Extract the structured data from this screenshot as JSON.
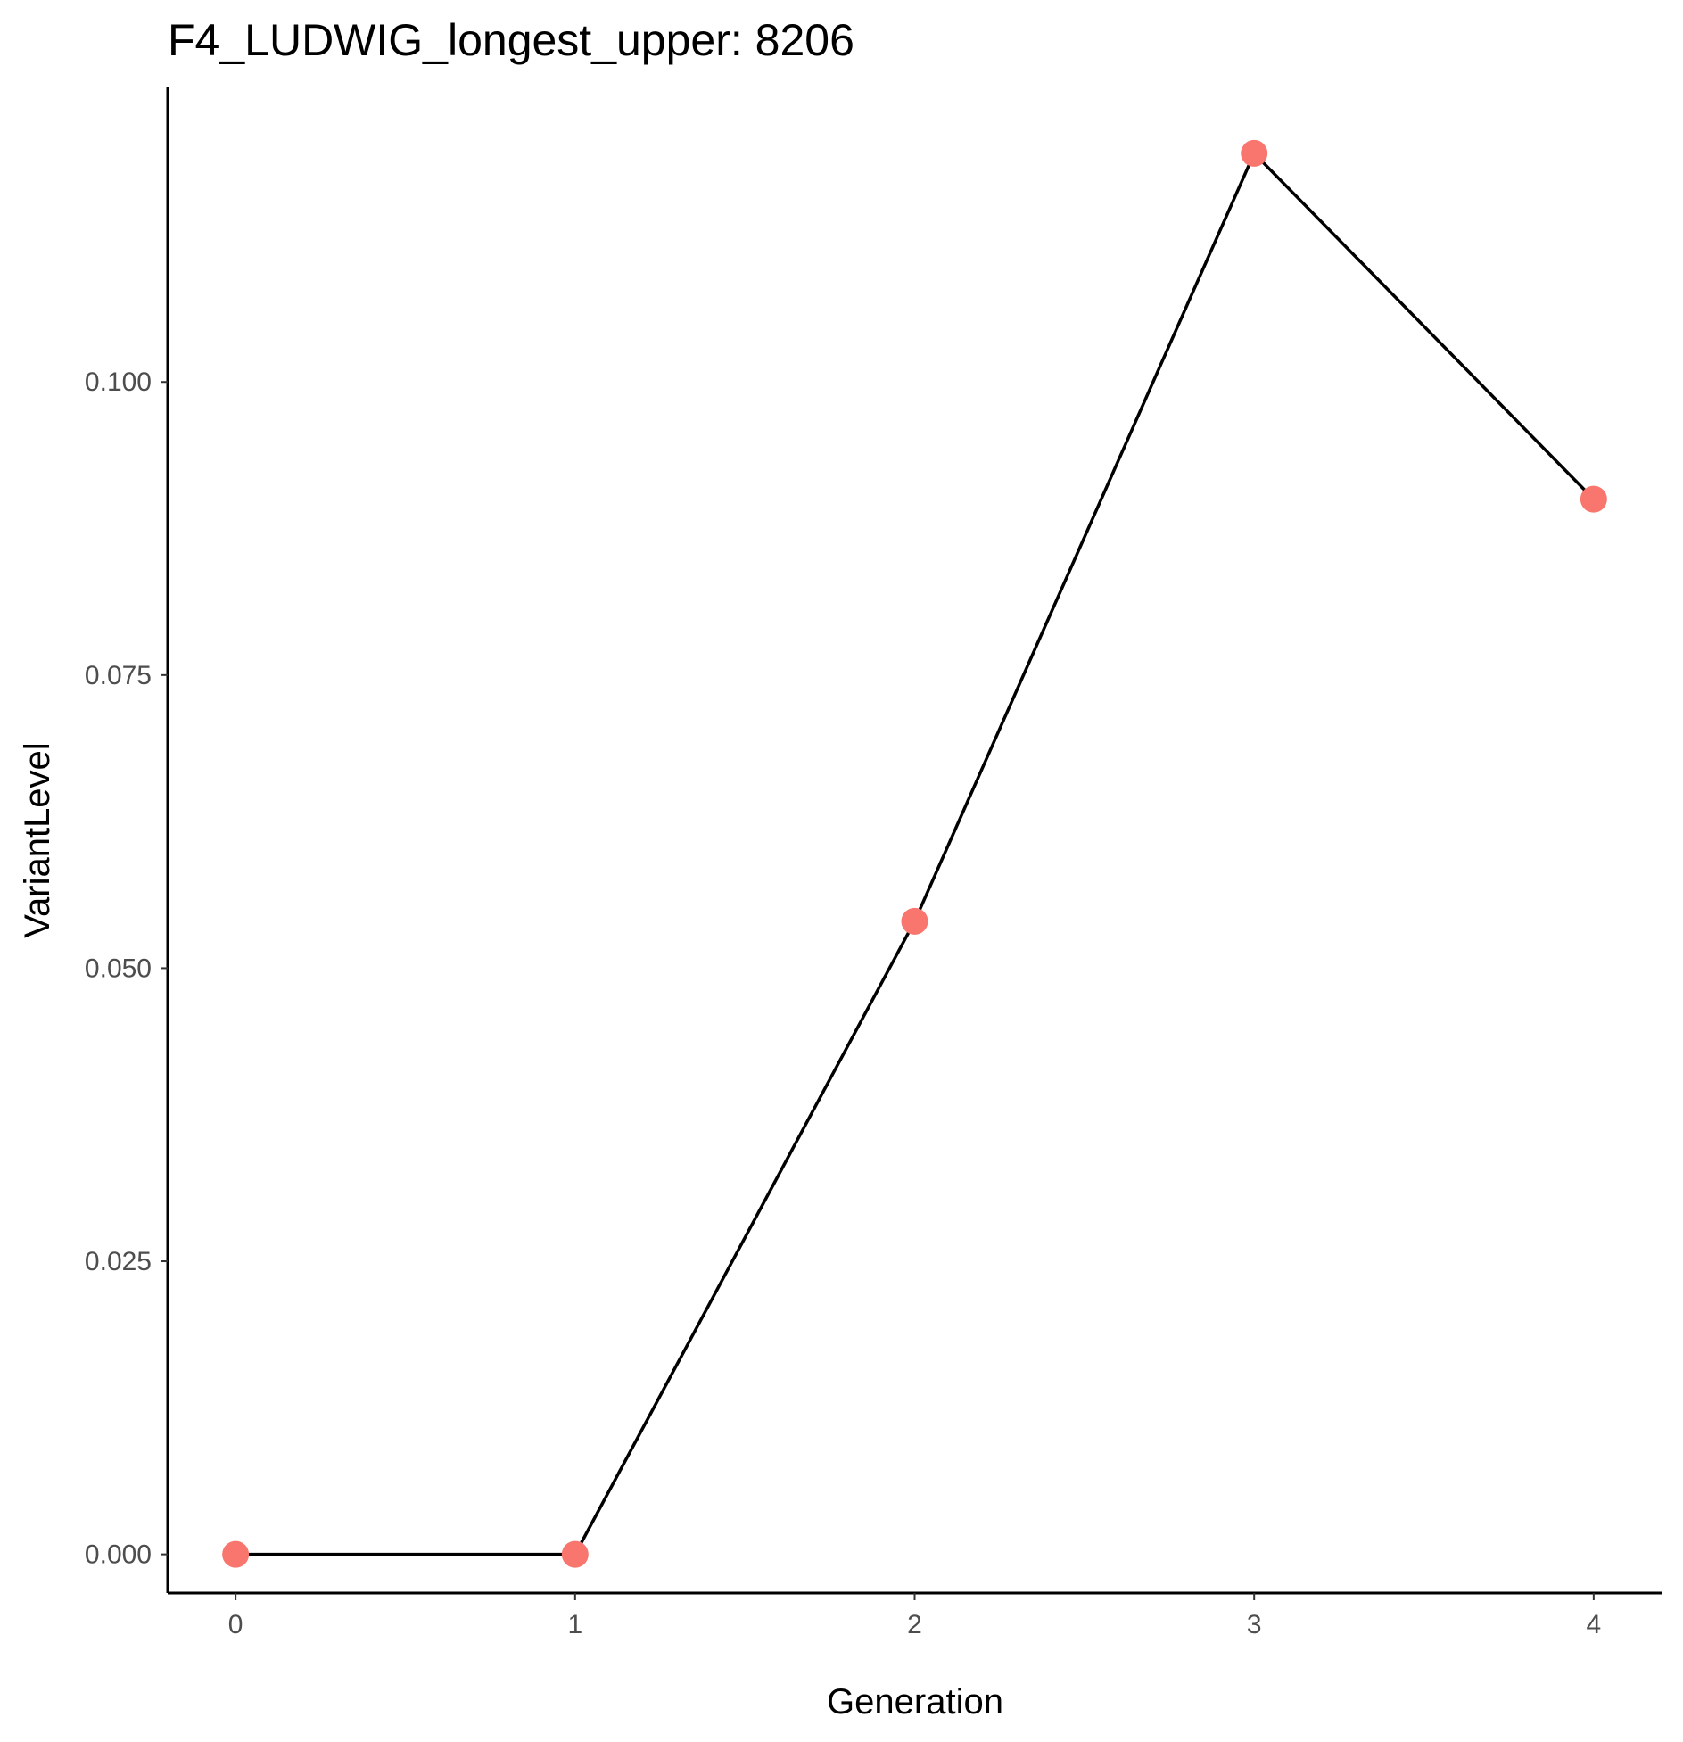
{
  "chart_data": {
    "type": "line",
    "title": "F4_LUDWIG_longest_upper: 8206",
    "xlabel": "Generation",
    "ylabel": "VariantLevel",
    "x": [
      0,
      1,
      2,
      3,
      4
    ],
    "series": [
      {
        "name": "VariantLevel",
        "values": [
          0.0,
          0.0,
          0.054,
          0.1195,
          0.09
        ]
      }
    ],
    "x_ticks": [
      "0",
      "1",
      "2",
      "3",
      "4"
    ],
    "y_ticks": [
      "0.000",
      "0.025",
      "0.050",
      "0.075",
      "0.100"
    ],
    "xlim": [
      -0.2,
      4.2
    ],
    "ylim": [
      -0.0033,
      0.1252
    ],
    "grid": false,
    "legend": "none",
    "colors": {
      "points": "#F8766D",
      "line": "#000000",
      "axis": "#000000",
      "tick_text": "#4d4d4d"
    }
  }
}
